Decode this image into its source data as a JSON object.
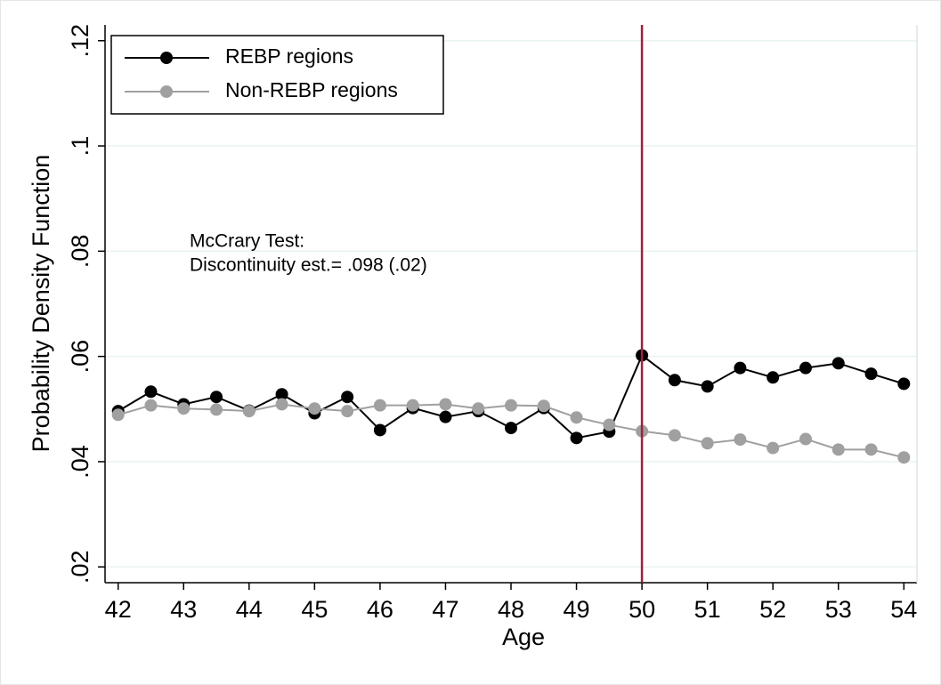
{
  "chart_data": {
    "type": "line",
    "xlabel": "Age",
    "ylabel": "Probability Density Function",
    "x": [
      42,
      42.5,
      43,
      43.5,
      44,
      44.5,
      45,
      45.5,
      46,
      46.5,
      47,
      47.5,
      48,
      48.5,
      49,
      49.5,
      50,
      50.5,
      51,
      51.5,
      52,
      52.5,
      53,
      53.5,
      54
    ],
    "series": [
      {
        "name": "REBP regions",
        "color": "#000000",
        "values": [
          0.0496,
          0.0533,
          0.0509,
          0.0523,
          0.0497,
          0.0528,
          0.0492,
          0.0523,
          0.046,
          0.0502,
          0.0485,
          0.0496,
          0.0464,
          0.0502,
          0.0445,
          0.0457,
          0.0602,
          0.0555,
          0.0543,
          0.0578,
          0.056,
          0.0578,
          0.0587,
          0.0567,
          0.0548
        ]
      },
      {
        "name": "Non-REBP regions",
        "color": "#a0a0a0",
        "values": [
          0.0489,
          0.0507,
          0.0501,
          0.0499,
          0.0496,
          0.0509,
          0.0501,
          0.0496,
          0.0507,
          0.0507,
          0.0509,
          0.0501,
          0.0507,
          0.0506,
          0.0484,
          0.047,
          0.0458,
          0.045,
          0.0435,
          0.0442,
          0.0426,
          0.0443,
          0.0423,
          0.0423,
          0.0408
        ]
      }
    ],
    "xlim": [
      41.8,
      54.2
    ],
    "xticks": [
      42,
      43,
      44,
      45,
      46,
      47,
      48,
      49,
      50,
      51,
      52,
      53,
      54
    ],
    "ylim": [
      0.017,
      0.123
    ],
    "yticks": [
      {
        "value": 0.02,
        "label": ".02"
      },
      {
        "value": 0.04,
        "label": ".04"
      },
      {
        "value": 0.06,
        "label": ".06"
      },
      {
        "value": 0.08,
        "label": ".08"
      },
      {
        "value": 0.1,
        "label": ".1"
      },
      {
        "value": 0.12,
        "label": ".12"
      }
    ],
    "grid": true,
    "legend": "top-left",
    "vline": 50,
    "vline_color": "#a0203c",
    "annotation": [
      "McCrary Test:",
      "Discontinuity est.= .098 (.02)"
    ]
  }
}
